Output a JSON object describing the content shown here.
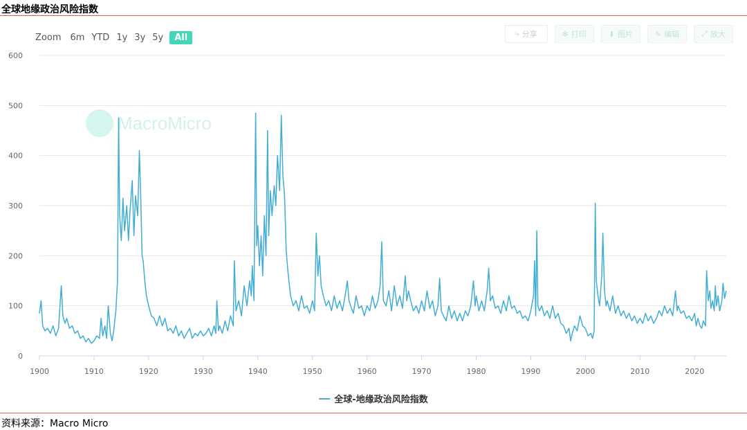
{
  "header": {
    "title": "全球地缘政治风险指数"
  },
  "footer": {
    "source": "资料来源：Macro Micro"
  },
  "watermark": {
    "text": "MacroMicro"
  },
  "zoom": {
    "label": "Zoom",
    "buttons": [
      {
        "label": "6m",
        "active": false
      },
      {
        "label": "YTD",
        "active": false
      },
      {
        "label": "1y",
        "active": false
      },
      {
        "label": "3y",
        "active": false
      },
      {
        "label": "5y",
        "active": false
      },
      {
        "label": "All",
        "active": true
      }
    ]
  },
  "toolbar": {
    "share_label": "分享",
    "print_label": "打印",
    "download_label": "图片",
    "edit_label": "编辑",
    "fullscreen_label": "放大"
  },
  "chart_data": {
    "type": "line",
    "title": "全球地缘政治风险指数",
    "xlabel": "",
    "ylabel": "",
    "x_range": [
      1900,
      2025.8
    ],
    "ylim": [
      0,
      600
    ],
    "y_ticks": [
      0,
      100,
      200,
      300,
      400,
      500,
      600
    ],
    "x_ticks": [
      1900,
      1910,
      1920,
      1930,
      1940,
      1950,
      1960,
      1970,
      1980,
      1990,
      2000,
      2010,
      2020
    ],
    "grid": true,
    "legend_position": "bottom-center",
    "series": [
      {
        "name": "全球-地缘政治风险指数",
        "color": "#41acd6",
        "points": [
          [
            1900.0,
            85
          ],
          [
            1900.3,
            110
          ],
          [
            1900.6,
            60
          ],
          [
            1901.0,
            50
          ],
          [
            1901.5,
            55
          ],
          [
            1902.0,
            45
          ],
          [
            1902.5,
            60
          ],
          [
            1903.0,
            40
          ],
          [
            1903.5,
            55
          ],
          [
            1904.0,
            140
          ],
          [
            1904.3,
            80
          ],
          [
            1904.7,
            65
          ],
          [
            1905.0,
            75
          ],
          [
            1905.5,
            55
          ],
          [
            1906.0,
            60
          ],
          [
            1906.5,
            45
          ],
          [
            1907.0,
            50
          ],
          [
            1907.5,
            35
          ],
          [
            1908.0,
            40
          ],
          [
            1908.5,
            28
          ],
          [
            1909.0,
            35
          ],
          [
            1909.5,
            25
          ],
          [
            1910.0,
            30
          ],
          [
            1910.5,
            40
          ],
          [
            1911.0,
            35
          ],
          [
            1911.3,
            75
          ],
          [
            1911.6,
            40
          ],
          [
            1912.0,
            60
          ],
          [
            1912.3,
            35
          ],
          [
            1912.6,
            100
          ],
          [
            1913.0,
            45
          ],
          [
            1913.3,
            30
          ],
          [
            1913.6,
            50
          ],
          [
            1914.0,
            90
          ],
          [
            1914.3,
            150
          ],
          [
            1914.5,
            475
          ],
          [
            1914.7,
            280
          ],
          [
            1915.0,
            230
          ],
          [
            1915.3,
            315
          ],
          [
            1915.6,
            250
          ],
          [
            1916.0,
            300
          ],
          [
            1916.3,
            230
          ],
          [
            1916.6,
            290
          ],
          [
            1917.0,
            350
          ],
          [
            1917.3,
            240
          ],
          [
            1917.6,
            320
          ],
          [
            1918.0,
            280
          ],
          [
            1918.3,
            410
          ],
          [
            1918.6,
            300
          ],
          [
            1918.8,
            200
          ],
          [
            1919.0,
            190
          ],
          [
            1919.3,
            150
          ],
          [
            1919.6,
            120
          ],
          [
            1920.0,
            100
          ],
          [
            1920.5,
            80
          ],
          [
            1921.0,
            75
          ],
          [
            1921.5,
            60
          ],
          [
            1922.0,
            80
          ],
          [
            1922.5,
            60
          ],
          [
            1923.0,
            75
          ],
          [
            1923.5,
            50
          ],
          [
            1924.0,
            55
          ],
          [
            1924.5,
            45
          ],
          [
            1925.0,
            60
          ],
          [
            1925.5,
            40
          ],
          [
            1926.0,
            50
          ],
          [
            1926.5,
            35
          ],
          [
            1927.0,
            45
          ],
          [
            1927.5,
            55
          ],
          [
            1928.0,
            35
          ],
          [
            1928.5,
            45
          ],
          [
            1929.0,
            40
          ],
          [
            1929.5,
            50
          ],
          [
            1930.0,
            40
          ],
          [
            1930.5,
            45
          ],
          [
            1931.0,
            55
          ],
          [
            1931.5,
            40
          ],
          [
            1932.0,
            60
          ],
          [
            1932.3,
            45
          ],
          [
            1932.5,
            110
          ],
          [
            1932.8,
            50
          ],
          [
            1933.0,
            60
          ],
          [
            1933.5,
            45
          ],
          [
            1934.0,
            70
          ],
          [
            1934.5,
            50
          ],
          [
            1935.0,
            80
          ],
          [
            1935.5,
            60
          ],
          [
            1935.7,
            190
          ],
          [
            1936.0,
            90
          ],
          [
            1936.5,
            110
          ],
          [
            1937.0,
            80
          ],
          [
            1937.5,
            140
          ],
          [
            1938.0,
            100
          ],
          [
            1938.5,
            150
          ],
          [
            1938.8,
            120
          ],
          [
            1939.0,
            180
          ],
          [
            1939.3,
            110
          ],
          [
            1939.6,
            485
          ],
          [
            1939.8,
            220
          ],
          [
            1940.0,
            260
          ],
          [
            1940.3,
            180
          ],
          [
            1940.6,
            240
          ],
          [
            1940.9,
            160
          ],
          [
            1941.2,
            280
          ],
          [
            1941.5,
            200
          ],
          [
            1941.8,
            450
          ],
          [
            1942.0,
            240
          ],
          [
            1942.3,
            330
          ],
          [
            1942.6,
            280
          ],
          [
            1943.0,
            340
          ],
          [
            1943.3,
            300
          ],
          [
            1943.6,
            400
          ],
          [
            1944.0,
            330
          ],
          [
            1944.3,
            480
          ],
          [
            1944.6,
            360
          ],
          [
            1944.9,
            320
          ],
          [
            1945.2,
            210
          ],
          [
            1945.5,
            170
          ],
          [
            1945.8,
            140
          ],
          [
            1946.0,
            120
          ],
          [
            1946.5,
            100
          ],
          [
            1947.0,
            110
          ],
          [
            1947.5,
            90
          ],
          [
            1948.0,
            120
          ],
          [
            1948.5,
            95
          ],
          [
            1949.0,
            100
          ],
          [
            1949.5,
            85
          ],
          [
            1950.0,
            110
          ],
          [
            1950.4,
            90
          ],
          [
            1950.7,
            245
          ],
          [
            1951.0,
            160
          ],
          [
            1951.3,
            200
          ],
          [
            1951.6,
            140
          ],
          [
            1952.0,
            120
          ],
          [
            1952.5,
            100
          ],
          [
            1953.0,
            110
          ],
          [
            1953.5,
            90
          ],
          [
            1954.0,
            120
          ],
          [
            1954.5,
            95
          ],
          [
            1955.0,
            110
          ],
          [
            1955.5,
            90
          ],
          [
            1956.0,
            120
          ],
          [
            1956.4,
            150
          ],
          [
            1956.7,
            110
          ],
          [
            1957.0,
            100
          ],
          [
            1957.5,
            85
          ],
          [
            1958.0,
            120
          ],
          [
            1958.5,
            95
          ],
          [
            1959.0,
            100
          ],
          [
            1959.5,
            80
          ],
          [
            1960.0,
            100
          ],
          [
            1960.5,
            90
          ],
          [
            1961.0,
            120
          ],
          [
            1961.5,
            95
          ],
          [
            1962.0,
            110
          ],
          [
            1962.4,
            140
          ],
          [
            1962.7,
            228
          ],
          [
            1963.0,
            110
          ],
          [
            1963.5,
            100
          ],
          [
            1964.0,
            130
          ],
          [
            1964.5,
            90
          ],
          [
            1965.0,
            140
          ],
          [
            1965.5,
            100
          ],
          [
            1966.0,
            120
          ],
          [
            1966.5,
            95
          ],
          [
            1967.0,
            160
          ],
          [
            1967.3,
            110
          ],
          [
            1967.6,
            130
          ],
          [
            1968.0,
            110
          ],
          [
            1968.5,
            90
          ],
          [
            1969.0,
            100
          ],
          [
            1969.5,
            85
          ],
          [
            1970.0,
            110
          ],
          [
            1970.5,
            90
          ],
          [
            1971.0,
            130
          ],
          [
            1971.5,
            95
          ],
          [
            1972.0,
            110
          ],
          [
            1972.5,
            80
          ],
          [
            1973.0,
            100
          ],
          [
            1973.3,
            155
          ],
          [
            1973.6,
            90
          ],
          [
            1974.0,
            80
          ],
          [
            1974.5,
            70
          ],
          [
            1975.0,
            100
          ],
          [
            1975.5,
            75
          ],
          [
            1976.0,
            90
          ],
          [
            1976.5,
            70
          ],
          [
            1977.0,
            85
          ],
          [
            1977.5,
            70
          ],
          [
            1978.0,
            90
          ],
          [
            1978.5,
            80
          ],
          [
            1979.0,
            100
          ],
          [
            1979.5,
            150
          ],
          [
            1979.8,
            100
          ],
          [
            1980.0,
            120
          ],
          [
            1980.5,
            90
          ],
          [
            1981.0,
            110
          ],
          [
            1981.5,
            90
          ],
          [
            1982.0,
            130
          ],
          [
            1982.3,
            175
          ],
          [
            1982.6,
            110
          ],
          [
            1983.0,
            120
          ],
          [
            1983.5,
            95
          ],
          [
            1984.0,
            100
          ],
          [
            1984.5,
            85
          ],
          [
            1985.0,
            110
          ],
          [
            1985.5,
            90
          ],
          [
            1986.0,
            120
          ],
          [
            1986.5,
            95
          ],
          [
            1987.0,
            100
          ],
          [
            1987.5,
            85
          ],
          [
            1988.0,
            90
          ],
          [
            1988.5,
            75
          ],
          [
            1989.0,
            80
          ],
          [
            1989.5,
            70
          ],
          [
            1990.0,
            90
          ],
          [
            1990.5,
            120
          ],
          [
            1990.7,
            190
          ],
          [
            1990.9,
            80
          ],
          [
            1991.1,
            250
          ],
          [
            1991.3,
            100
          ],
          [
            1991.6,
            90
          ],
          [
            1992.0,
            100
          ],
          [
            1992.5,
            80
          ],
          [
            1993.0,
            90
          ],
          [
            1993.5,
            75
          ],
          [
            1994.0,
            100
          ],
          [
            1994.5,
            75
          ],
          [
            1995.0,
            85
          ],
          [
            1995.5,
            65
          ],
          [
            1996.0,
            60
          ],
          [
            1996.5,
            45
          ],
          [
            1997.0,
            55
          ],
          [
            1997.3,
            30
          ],
          [
            1997.6,
            45
          ],
          [
            1998.0,
            60
          ],
          [
            1998.5,
            50
          ],
          [
            1999.0,
            80
          ],
          [
            1999.5,
            60
          ],
          [
            2000.0,
            55
          ],
          [
            2000.5,
            40
          ],
          [
            2001.0,
            45
          ],
          [
            2001.3,
            35
          ],
          [
            2001.6,
            50
          ],
          [
            2001.8,
            305
          ],
          [
            2002.0,
            150
          ],
          [
            2002.3,
            120
          ],
          [
            2002.6,
            100
          ],
          [
            2003.0,
            160
          ],
          [
            2003.2,
            245
          ],
          [
            2003.5,
            130
          ],
          [
            2003.8,
            100
          ],
          [
            2004.0,
            110
          ],
          [
            2004.5,
            90
          ],
          [
            2005.0,
            120
          ],
          [
            2005.5,
            85
          ],
          [
            2006.0,
            100
          ],
          [
            2006.5,
            80
          ],
          [
            2007.0,
            90
          ],
          [
            2007.5,
            75
          ],
          [
            2008.0,
            85
          ],
          [
            2008.5,
            70
          ],
          [
            2009.0,
            80
          ],
          [
            2009.5,
            65
          ],
          [
            2010.0,
            75
          ],
          [
            2010.5,
            65
          ],
          [
            2011.0,
            85
          ],
          [
            2011.5,
            70
          ],
          [
            2012.0,
            80
          ],
          [
            2012.5,
            65
          ],
          [
            2013.0,
            75
          ],
          [
            2013.5,
            90
          ],
          [
            2014.0,
            80
          ],
          [
            2014.5,
            100
          ],
          [
            2015.0,
            85
          ],
          [
            2015.5,
            95
          ],
          [
            2016.0,
            80
          ],
          [
            2016.5,
            130
          ],
          [
            2016.8,
            90
          ],
          [
            2017.0,
            100
          ],
          [
            2017.5,
            85
          ],
          [
            2018.0,
            90
          ],
          [
            2018.5,
            75
          ],
          [
            2019.0,
            80
          ],
          [
            2019.5,
            70
          ],
          [
            2020.0,
            85
          ],
          [
            2020.3,
            60
          ],
          [
            2020.6,
            75
          ],
          [
            2021.0,
            60
          ],
          [
            2021.3,
            55
          ],
          [
            2021.6,
            70
          ],
          [
            2022.0,
            60
          ],
          [
            2022.2,
            170
          ],
          [
            2022.5,
            110
          ],
          [
            2022.8,
            130
          ],
          [
            2023.0,
            95
          ],
          [
            2023.3,
            110
          ],
          [
            2023.6,
            90
          ],
          [
            2023.8,
            140
          ],
          [
            2024.0,
            100
          ],
          [
            2024.3,
            120
          ],
          [
            2024.6,
            90
          ],
          [
            2025.0,
            110
          ],
          [
            2025.2,
            145
          ],
          [
            2025.5,
            115
          ],
          [
            2025.8,
            130
          ]
        ]
      }
    ]
  }
}
